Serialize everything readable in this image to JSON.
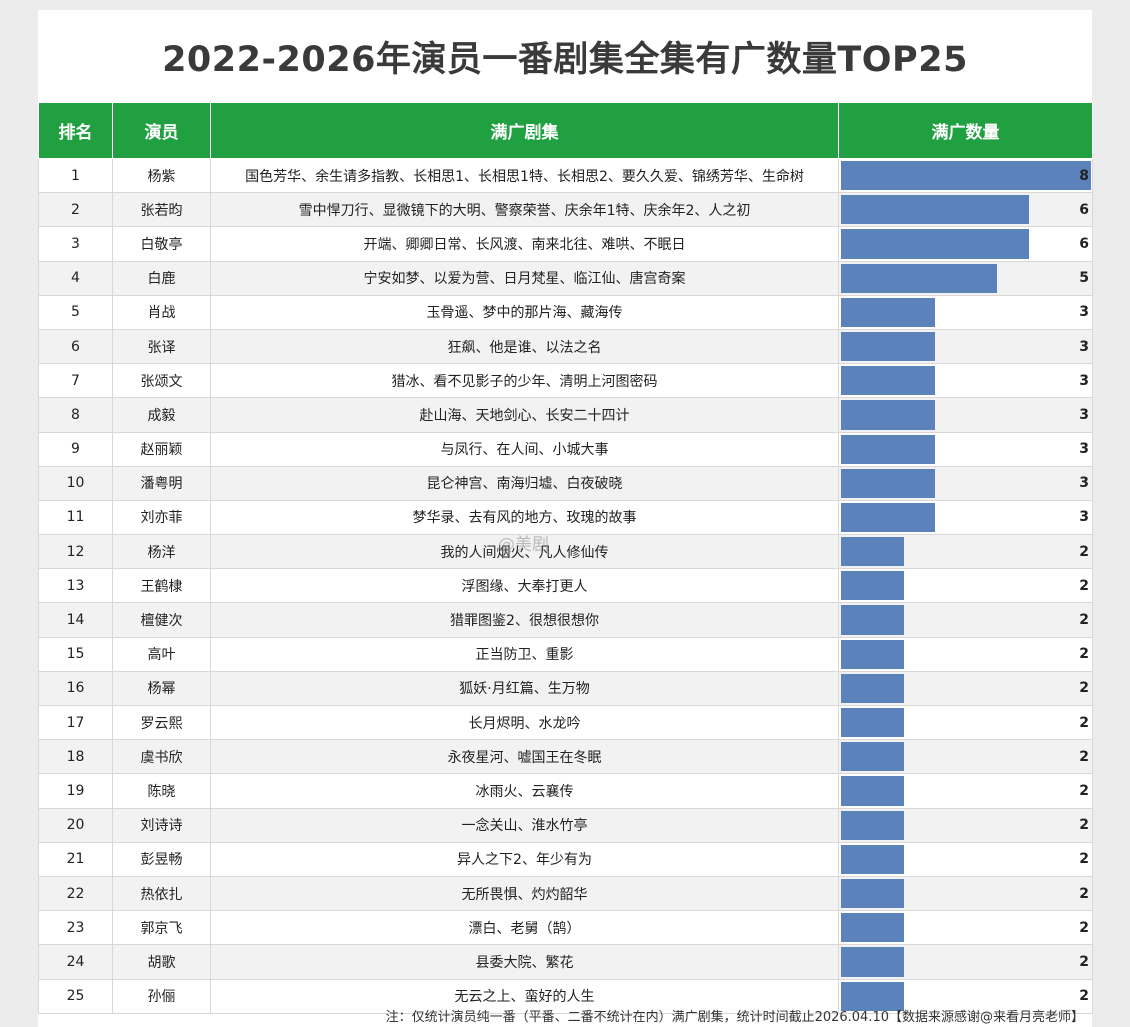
{
  "title": "2022-2026年演员一番剧集全集有广数量TOP25",
  "columns": {
    "rank": "排名",
    "actor": "演员",
    "shows": "满广剧集",
    "count": "满广数量"
  },
  "rows": [
    {
      "rank": "1",
      "actor": "杨紫",
      "shows": "国色芳华、余生请多指教、长相思1、长相思1特、长相思2、要久久爱、锦绣芳华、生命树",
      "count": "8"
    },
    {
      "rank": "2",
      "actor": "张若昀",
      "shows": "雪中悍刀行、显微镜下的大明、警察荣誉、庆余年1特、庆余年2、人之初",
      "count": "6"
    },
    {
      "rank": "3",
      "actor": "白敬亭",
      "shows": "开端、卿卿日常、长风渡、南来北往、难哄、不眠日",
      "count": "6"
    },
    {
      "rank": "4",
      "actor": "白鹿",
      "shows": "宁安如梦、以爱为营、日月梵星、临江仙、唐宫奇案",
      "count": "5"
    },
    {
      "rank": "5",
      "actor": "肖战",
      "shows": "玉骨遥、梦中的那片海、藏海传",
      "count": "3"
    },
    {
      "rank": "6",
      "actor": "张译",
      "shows": "狂飙、他是谁、以法之名",
      "count": "3"
    },
    {
      "rank": "7",
      "actor": "张颂文",
      "shows": "猎冰、看不见影子的少年、清明上河图密码",
      "count": "3"
    },
    {
      "rank": "8",
      "actor": "成毅",
      "shows": "赴山海、天地剑心、长安二十四计",
      "count": "3"
    },
    {
      "rank": "9",
      "actor": "赵丽颖",
      "shows": "与凤行、在人间、小城大事",
      "count": "3"
    },
    {
      "rank": "10",
      "actor": "潘粤明",
      "shows": "昆仑神宫、南海归墟、白夜破晓",
      "count": "3"
    },
    {
      "rank": "11",
      "actor": "刘亦菲",
      "shows": "梦华录、去有风的地方、玫瑰的故事",
      "count": "3"
    },
    {
      "rank": "12",
      "actor": "杨洋",
      "shows": "我的人间烟火、凡人修仙传",
      "count": "2"
    },
    {
      "rank": "13",
      "actor": "王鹤棣",
      "shows": "浮图缘、大奉打更人",
      "count": "2"
    },
    {
      "rank": "14",
      "actor": "檀健次",
      "shows": "猎罪图鉴2、很想很想你",
      "count": "2"
    },
    {
      "rank": "15",
      "actor": "高叶",
      "shows": "正当防卫、重影",
      "count": "2"
    },
    {
      "rank": "16",
      "actor": "杨幂",
      "shows": "狐妖·月红篇、生万物",
      "count": "2"
    },
    {
      "rank": "17",
      "actor": "罗云熙",
      "shows": "长月烬明、水龙吟",
      "count": "2"
    },
    {
      "rank": "18",
      "actor": "虞书欣",
      "shows": "永夜星河、嘘国王在冬眠",
      "count": "2"
    },
    {
      "rank": "19",
      "actor": "陈晓",
      "shows": "冰雨火、云襄传",
      "count": "2"
    },
    {
      "rank": "20",
      "actor": "刘诗诗",
      "shows": "一念关山、淮水竹亭",
      "count": "2"
    },
    {
      "rank": "21",
      "actor": "彭昱畅",
      "shows": "异人之下2、年少有为",
      "count": "2"
    },
    {
      "rank": "22",
      "actor": "热依扎",
      "shows": "无所畏惧、灼灼韶华",
      "count": "2"
    },
    {
      "rank": "23",
      "actor": "郭京飞",
      "shows": "漂白、老舅（鹄）",
      "count": "2"
    },
    {
      "rank": "24",
      "actor": "胡歌",
      "shows": "县委大院、繁花",
      "count": "2"
    },
    {
      "rank": "25",
      "actor": "孙俪",
      "shows": "无云之上、蛮好的人生",
      "count": "2"
    }
  ],
  "footnote": "注：仅统计演员纯一番（平番、二番不统计在内）满广剧集，统计时间截止2026.04.10【数据来源感谢@来看月亮老师】",
  "watermark": "@美剧",
  "colors": {
    "header_bg": "#21a042",
    "bar": "#5b82ba",
    "title_text": "#3a3a3a"
  },
  "chart_data": {
    "type": "bar",
    "orientation": "horizontal",
    "title": "2022-2026年演员一番剧集全集有广数量TOP25",
    "value_label": "满广数量",
    "categories": [
      "杨紫",
      "张若昀",
      "白敬亭",
      "白鹿",
      "肖战",
      "张译",
      "张颂文",
      "成毅",
      "赵丽颖",
      "潘粤明",
      "刘亦菲",
      "杨洋",
      "王鹤棣",
      "檀健次",
      "高叶",
      "杨幂",
      "罗云熙",
      "虞书欣",
      "陈晓",
      "刘诗诗",
      "彭昱畅",
      "热依扎",
      "郭京飞",
      "胡歌",
      "孙俪"
    ],
    "values": [
      8,
      6,
      6,
      5,
      3,
      3,
      3,
      3,
      3,
      3,
      3,
      2,
      2,
      2,
      2,
      2,
      2,
      2,
      2,
      2,
      2,
      2,
      2,
      2,
      2
    ],
    "xlim": [
      0,
      8
    ]
  }
}
